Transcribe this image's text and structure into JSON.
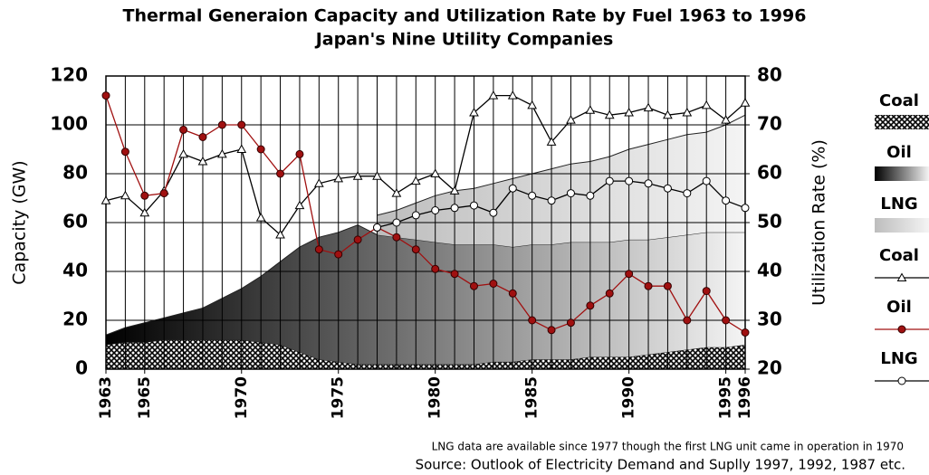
{
  "chart_data": {
    "type": "area",
    "title": "Thermal Generaion Capacity and Utilization Rate by Fuel 1963 to 1996",
    "subtitle": "Japan's Nine Utility Companies",
    "ylabel": "Capacity (GW)",
    "y2label": "Utilization Rate (%)",
    "x": [
      1963,
      1964,
      1965,
      1966,
      1967,
      1968,
      1969,
      1970,
      1971,
      1972,
      1973,
      1974,
      1975,
      1976,
      1977,
      1978,
      1979,
      1980,
      1981,
      1982,
      1983,
      1984,
      1985,
      1986,
      1987,
      1988,
      1989,
      1990,
      1991,
      1992,
      1993,
      1994,
      1995,
      1996
    ],
    "xlim": [
      1963,
      1996
    ],
    "xticks": [
      1963,
      1965,
      1970,
      1975,
      1980,
      1985,
      1990,
      1995,
      1996
    ],
    "ylim": [
      0,
      120
    ],
    "yticks": [
      0,
      20,
      40,
      60,
      80,
      100,
      120
    ],
    "y2lim": [
      20,
      80
    ],
    "y2ticks": [
      20,
      30,
      40,
      50,
      60,
      70,
      80
    ],
    "grid": true,
    "series": [
      {
        "name": "Coal",
        "type": "area",
        "fill": "crosshatch",
        "color": "#000000",
        "values": [
          10,
          11,
          11,
          12,
          12,
          12,
          12,
          12,
          11,
          10,
          7,
          4,
          3,
          2,
          2,
          2,
          2,
          2,
          2,
          2,
          3,
          3,
          4,
          4,
          4,
          5,
          5,
          5,
          6,
          7,
          8,
          9,
          9,
          10
        ]
      },
      {
        "name": "Oil",
        "type": "area",
        "fill": "gradient",
        "color": "#000000",
        "values": [
          4,
          6,
          8,
          9,
          11,
          13,
          17,
          21,
          27,
          34,
          43,
          50,
          53,
          57,
          53,
          52,
          51,
          50,
          49,
          49,
          48,
          47,
          47,
          47,
          48,
          47,
          47,
          48,
          47,
          47,
          47,
          47,
          47,
          46
        ]
      },
      {
        "name": "LNG",
        "type": "area",
        "fill": "gradient",
        "color": "#bdbdbd",
        "values": [
          null,
          null,
          null,
          null,
          null,
          null,
          null,
          null,
          null,
          null,
          null,
          null,
          null,
          null,
          8,
          11,
          15,
          19,
          22,
          23,
          25,
          28,
          29,
          31,
          32,
          33,
          35,
          37,
          39,
          40,
          41,
          41,
          44,
          48
        ]
      },
      {
        "name": "Coal",
        "type": "line",
        "axis": "y2",
        "marker": "triangle",
        "color": "#000000",
        "values": [
          54.5,
          55.5,
          52,
          56.5,
          64,
          62.5,
          64,
          65,
          51,
          47.5,
          53.5,
          58,
          59,
          59.5,
          59.5,
          56,
          58.5,
          60,
          56.5,
          72.5,
          76,
          76,
          74,
          66.5,
          71,
          73,
          72,
          72.5,
          73.5,
          72,
          72.5,
          74,
          71,
          74.5
        ]
      },
      {
        "name": "Oil",
        "type": "line",
        "axis": "y2",
        "marker": "circle",
        "color": "#a01010",
        "values": [
          76,
          64.5,
          55.5,
          56,
          69,
          67.5,
          70,
          70,
          65,
          60,
          64,
          44.5,
          43.5,
          46.5,
          49,
          47,
          44.5,
          40.5,
          39.5,
          37,
          37.5,
          35.5,
          30,
          28,
          29.5,
          33,
          35.5,
          39.5,
          37,
          37,
          30,
          36,
          30,
          27.5
        ]
      },
      {
        "name": "LNG",
        "type": "line",
        "axis": "y2",
        "marker": "open-circle",
        "color": "#000000",
        "values": [
          null,
          null,
          null,
          null,
          null,
          null,
          null,
          null,
          null,
          null,
          null,
          null,
          null,
          null,
          49,
          50,
          51.5,
          52.5,
          53,
          53.5,
          52,
          57,
          55.5,
          54.5,
          56,
          55.5,
          58.5,
          58.5,
          58,
          57,
          56,
          58.5,
          54.5,
          53
        ]
      }
    ],
    "notes": [
      "LNG data are available since 1977 though the first LNG unit came in operation in 1970",
      "Source: Outlook of Electricity Demand and Suplly 1997, 1992, 1987 etc."
    ]
  }
}
